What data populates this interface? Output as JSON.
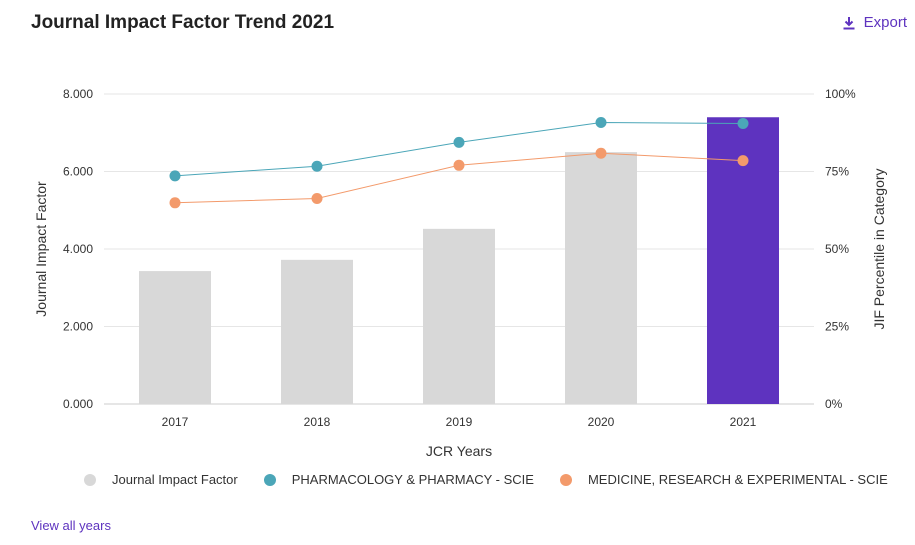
{
  "header": {
    "title": "Journal Impact Factor Trend 2021",
    "export_label": "Export",
    "export_icon": "download-icon"
  },
  "footer": {
    "view_all_label": "View all years"
  },
  "colors": {
    "bar": "#d8d8d8",
    "bar_highlight": "#5e33bf",
    "pharmacology": "#4ba6b8",
    "medicine": "#f39a6b",
    "grid": "#e6e6e6"
  },
  "chart_data": {
    "type": "bar",
    "categories": [
      "2017",
      "2018",
      "2019",
      "2020",
      "2021"
    ],
    "xlabel": "JCR Years",
    "ylabel": "Journal Impact Factor",
    "ylabel_right": "JIF Percentile in Category",
    "ylim": [
      0,
      8
    ],
    "ylim_right": [
      0,
      100
    ],
    "y_ticks": [
      "0.000",
      "2.000",
      "4.000",
      "6.000",
      "8.000"
    ],
    "y_ticks_right": [
      "0%",
      "25%",
      "50%",
      "75%",
      "100%"
    ],
    "highlight_category": "2021",
    "series": [
      {
        "name": "Journal Impact Factor",
        "kind": "bar",
        "axis": "left",
        "values": [
          3.43,
          3.72,
          4.52,
          6.5,
          7.4
        ]
      },
      {
        "name": "PHARMACOLOGY & PHARMACY - SCIE",
        "kind": "line",
        "axis": "right",
        "values": [
          73.6,
          76.7,
          84.4,
          90.8,
          90.5
        ]
      },
      {
        "name": "MEDICINE, RESEARCH & EXPERIMENTAL - SCIE",
        "kind": "line",
        "axis": "right",
        "values": [
          64.9,
          66.3,
          77.0,
          80.9,
          78.5
        ]
      }
    ],
    "legend_position": "bottom",
    "grid": true
  }
}
